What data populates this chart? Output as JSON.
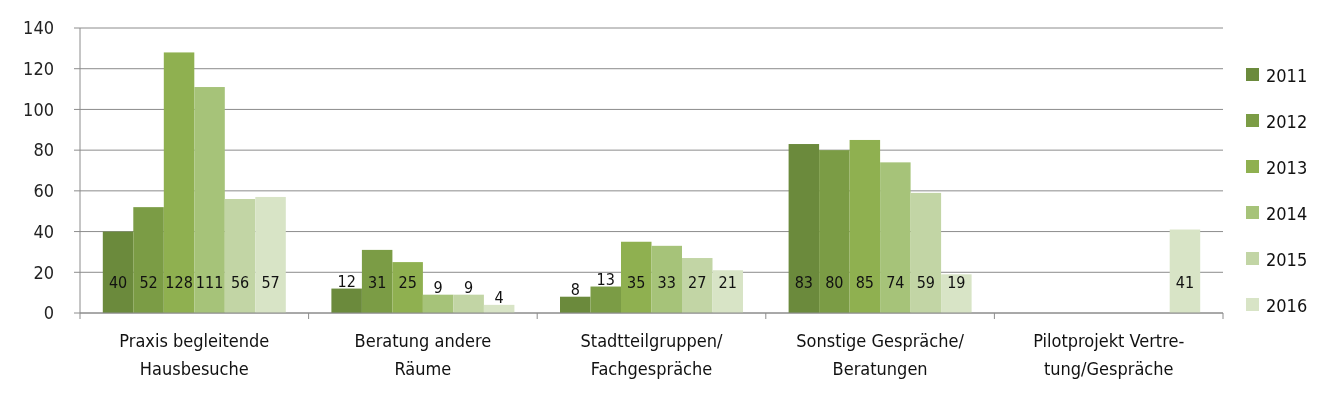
{
  "chart_data": {
    "type": "bar",
    "categories": [
      "Praxis begleitende\nHausbesuche",
      "Beratung andere\nRäume",
      "Stadtteilgruppen/\nFachgespräche",
      "Sonstige Gespräche/\nBeratungen",
      "Pilotprojekt Vertre-\ntung/Gespräche"
    ],
    "series": [
      {
        "name": "2011",
        "color": "#6b8a3c",
        "values": [
          40,
          12,
          8,
          83,
          null
        ]
      },
      {
        "name": "2012",
        "color": "#7b9c45",
        "values": [
          52,
          31,
          13,
          80,
          null
        ]
      },
      {
        "name": "2013",
        "color": "#8fb050",
        "values": [
          128,
          25,
          35,
          85,
          null
        ]
      },
      {
        "name": "2014",
        "color": "#a6c379",
        "values": [
          111,
          9,
          33,
          74,
          null
        ]
      },
      {
        "name": "2015",
        "color": "#c2d5a5",
        "values": [
          56,
          9,
          27,
          59,
          null
        ]
      },
      {
        "name": "2016",
        "color": "#d8e4c6",
        "values": [
          57,
          4,
          21,
          19,
          41
        ]
      }
    ],
    "ylim": [
      0,
      140
    ],
    "yticks": [
      0,
      20,
      40,
      60,
      80,
      100,
      120,
      140
    ],
    "grid": "y",
    "legend": "right",
    "data_labels": true
  }
}
